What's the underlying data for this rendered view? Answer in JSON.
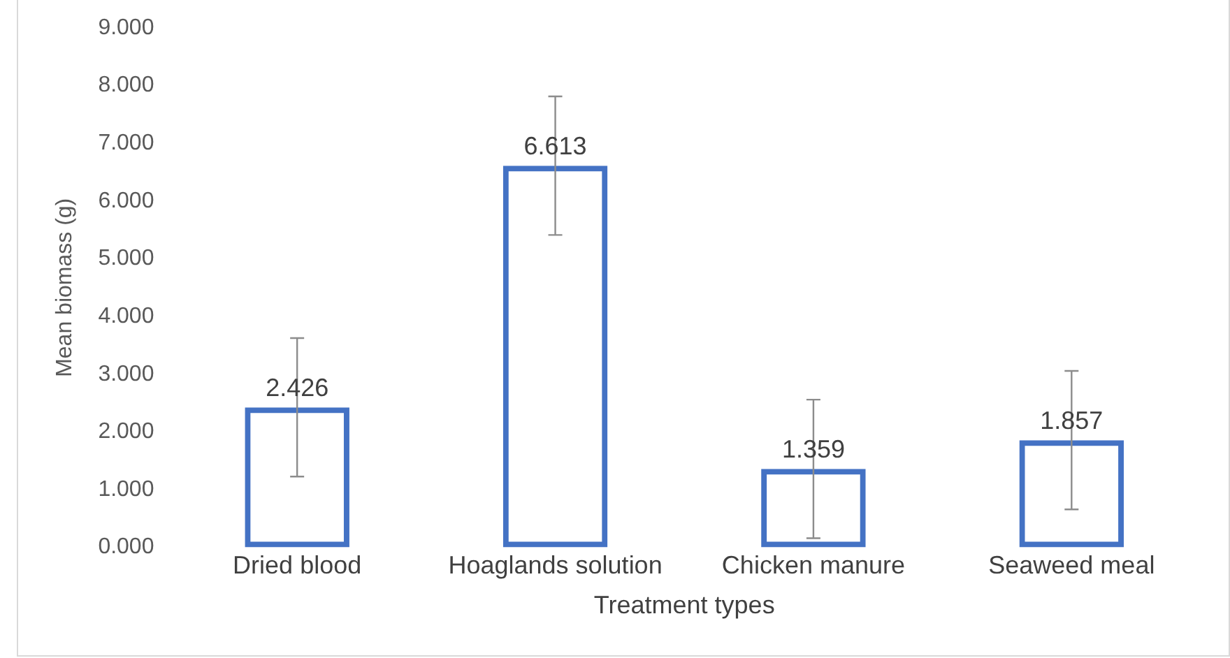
{
  "chart_data": {
    "type": "bar",
    "xlabel": "Treatment types",
    "ylabel": "Mean biomass (g)",
    "categories": [
      "Dried blood",
      "Hoaglands solution",
      "Chicken manure",
      "Seaweed meal"
    ],
    "values": [
      2.426,
      6.613,
      1.359,
      1.857
    ],
    "errors": [
      1.2,
      1.2,
      1.2,
      1.2
    ],
    "color": "#4472c4",
    "ylim": [
      0,
      9
    ],
    "yticks": [
      {
        "value": 0,
        "label": "0.000"
      },
      {
        "value": 1,
        "label": "1.000"
      },
      {
        "value": 2,
        "label": "2.000"
      },
      {
        "value": 3,
        "label": "3.000"
      },
      {
        "value": 4,
        "label": "4.000"
      },
      {
        "value": 5,
        "label": "5.000"
      },
      {
        "value": 6,
        "label": "6.000"
      },
      {
        "value": 7,
        "label": "7.000"
      },
      {
        "value": 8,
        "label": "8.000"
      },
      {
        "value": 9,
        "label": "9.000"
      }
    ],
    "data_labels": true,
    "grid": false,
    "legend": false
  }
}
